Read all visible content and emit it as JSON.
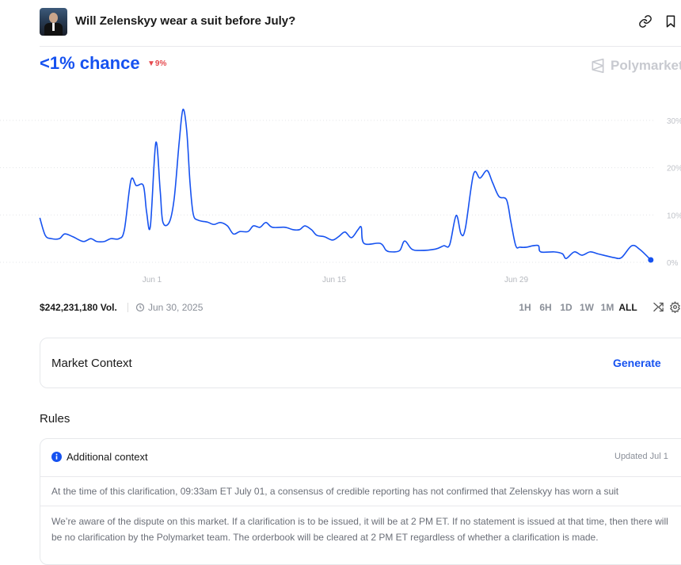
{
  "header": {
    "title": "Will Zelenskyy wear a suit before July?",
    "link_icon": "link-icon",
    "bookmark_icon": "bookmark-icon"
  },
  "probability": {
    "chance": "<1% chance",
    "delta": "9%",
    "delta_direction": "down",
    "delta_color": "#e5484d",
    "accent": "#1652f0"
  },
  "watermark": "Polymarket",
  "stats": {
    "volume": "$242,231,180 Vol.",
    "end_date": "Jun 30, 2025"
  },
  "ranges": [
    {
      "label": "1H"
    },
    {
      "label": "6H"
    },
    {
      "label": "1D"
    },
    {
      "label": "1W"
    },
    {
      "label": "1M"
    },
    {
      "label": "ALL",
      "active": true
    }
  ],
  "market_context": {
    "title": "Market Context",
    "action": "Generate"
  },
  "rules": {
    "heading": "Rules",
    "context_title": "Additional context",
    "updated": "Updated Jul 1",
    "paragraphs": [
      "At the time of this clarification, 09:33am ET July 01, a consensus of credible reporting has not confirmed that Zelenskyy has worn a suit",
      "We’re aware of the dispute on this market. If a clarification is to be issued, it will be at 2 PM ET. If no statement is issued at that time, then there will be no clarification by the Polymarket team. The orderbook will be cleared at 2 PM ET regardless of whether a clarification is made."
    ]
  },
  "chart_data": {
    "type": "line",
    "line_color": "#1652f0",
    "grid": "horizontal-dotted",
    "ylim": [
      0,
      30
    ],
    "yticks": [
      "0%",
      "10%",
      "20%",
      "30%"
    ],
    "xticks": [
      "Jun 1",
      "Jun 15",
      "Jun 29"
    ],
    "points": [
      [
        "2025-05-23T09",
        9.4
      ],
      [
        "2025-05-23T19",
        5.7
      ],
      [
        "2025-05-24T06",
        5.0
      ],
      [
        "2025-05-24T21",
        5.0
      ],
      [
        "2025-05-25T07",
        6.0
      ],
      [
        "2025-05-25T22",
        5.4
      ],
      [
        "2025-05-26T17",
        4.4
      ],
      [
        "2025-05-27T07",
        5.0
      ],
      [
        "2025-05-27T18",
        4.4
      ],
      [
        "2025-05-28T08",
        4.4
      ],
      [
        "2025-05-28T20",
        5.0
      ],
      [
        "2025-05-29T11",
        5.0
      ],
      [
        "2025-05-29T21",
        6.9
      ],
      [
        "2025-05-30T09",
        17.3
      ],
      [
        "2025-05-30T19",
        16.2
      ],
      [
        "2025-05-31T08",
        16.2
      ],
      [
        "2025-05-31T14",
        10.6
      ],
      [
        "2025-05-31T21",
        7.7
      ],
      [
        "2025-06-01T07",
        25.3
      ],
      [
        "2025-06-01T15",
        15.2
      ],
      [
        "2025-06-01T20",
        8.5
      ],
      [
        "2025-06-02T08",
        8.5
      ],
      [
        "2025-06-02T17",
        13.6
      ],
      [
        "2025-06-03T02",
        25.3
      ],
      [
        "2025-06-03T09",
        32.3
      ],
      [
        "2025-06-03T16",
        27.8
      ],
      [
        "2025-06-03T22",
        16.9
      ],
      [
        "2025-06-04T04",
        10.2
      ],
      [
        "2025-06-04T13",
        8.9
      ],
      [
        "2025-06-05T06",
        8.5
      ],
      [
        "2025-06-05T18",
        8.0
      ],
      [
        "2025-06-06T06",
        8.4
      ],
      [
        "2025-06-06T19",
        7.7
      ],
      [
        "2025-06-07T06",
        6.0
      ],
      [
        "2025-06-07T18",
        6.5
      ],
      [
        "2025-06-08T09",
        6.5
      ],
      [
        "2025-06-08T19",
        7.7
      ],
      [
        "2025-06-09T07",
        7.4
      ],
      [
        "2025-06-09T18",
        8.4
      ],
      [
        "2025-06-10T06",
        7.4
      ],
      [
        "2025-06-11T05",
        7.4
      ],
      [
        "2025-06-11T20",
        6.9
      ],
      [
        "2025-06-12T08",
        6.9
      ],
      [
        "2025-06-12T18",
        7.7
      ],
      [
        "2025-06-13T06",
        6.9
      ],
      [
        "2025-06-13T16",
        5.7
      ],
      [
        "2025-06-14T06",
        5.4
      ],
      [
        "2025-06-14T21",
        4.7
      ],
      [
        "2025-06-15T09",
        5.5
      ],
      [
        "2025-06-15T20",
        6.4
      ],
      [
        "2025-06-16T08",
        5.2
      ],
      [
        "2025-06-16T20",
        6.9
      ],
      [
        "2025-06-17T02",
        7.4
      ],
      [
        "2025-06-17T07",
        4.0
      ],
      [
        "2025-06-18T13",
        4.0
      ],
      [
        "2025-06-19T00",
        2.5
      ],
      [
        "2025-06-19T11",
        2.2
      ],
      [
        "2025-06-20T01",
        2.5
      ],
      [
        "2025-06-20T10",
        4.5
      ],
      [
        "2025-06-20T23",
        2.8
      ],
      [
        "2025-06-21T14",
        2.5
      ],
      [
        "2025-06-22T19",
        2.8
      ],
      [
        "2025-06-23T10",
        3.5
      ],
      [
        "2025-06-23T21",
        3.7
      ],
      [
        "2025-06-24T09",
        9.9
      ],
      [
        "2025-06-24T18",
        6.0
      ],
      [
        "2025-06-25T02",
        7.2
      ],
      [
        "2025-06-25T17",
        18.6
      ],
      [
        "2025-06-26T05",
        17.8
      ],
      [
        "2025-06-26T18",
        19.4
      ],
      [
        "2025-06-27T04",
        16.9
      ],
      [
        "2025-06-27T16",
        13.9
      ],
      [
        "2025-06-28T06",
        13.2
      ],
      [
        "2025-06-28T14",
        8.5
      ],
      [
        "2025-06-28T23",
        3.5
      ],
      [
        "2025-06-29T07",
        3.2
      ],
      [
        "2025-06-29T19",
        3.2
      ],
      [
        "2025-06-30T07",
        3.5
      ],
      [
        "2025-06-30T17",
        3.5
      ],
      [
        "2025-06-30T21",
        2.2
      ],
      [
        "2025-07-01T22",
        2.2
      ],
      [
        "2025-07-02T13",
        1.8
      ],
      [
        "2025-07-02T20",
        0.8
      ],
      [
        "2025-07-03T11",
        2.2
      ],
      [
        "2025-07-04T01",
        1.5
      ],
      [
        "2025-07-04T16",
        2.2
      ],
      [
        "2025-07-05T06",
        1.8
      ],
      [
        "2025-07-05T17",
        1.5
      ],
      [
        "2025-07-06T12",
        1.0
      ],
      [
        "2025-07-07T02",
        1.0
      ],
      [
        "2025-07-07T21",
        3.5
      ],
      [
        "2025-07-08T12",
        2.7
      ],
      [
        "2025-07-09T08",
        0.5
      ]
    ]
  }
}
